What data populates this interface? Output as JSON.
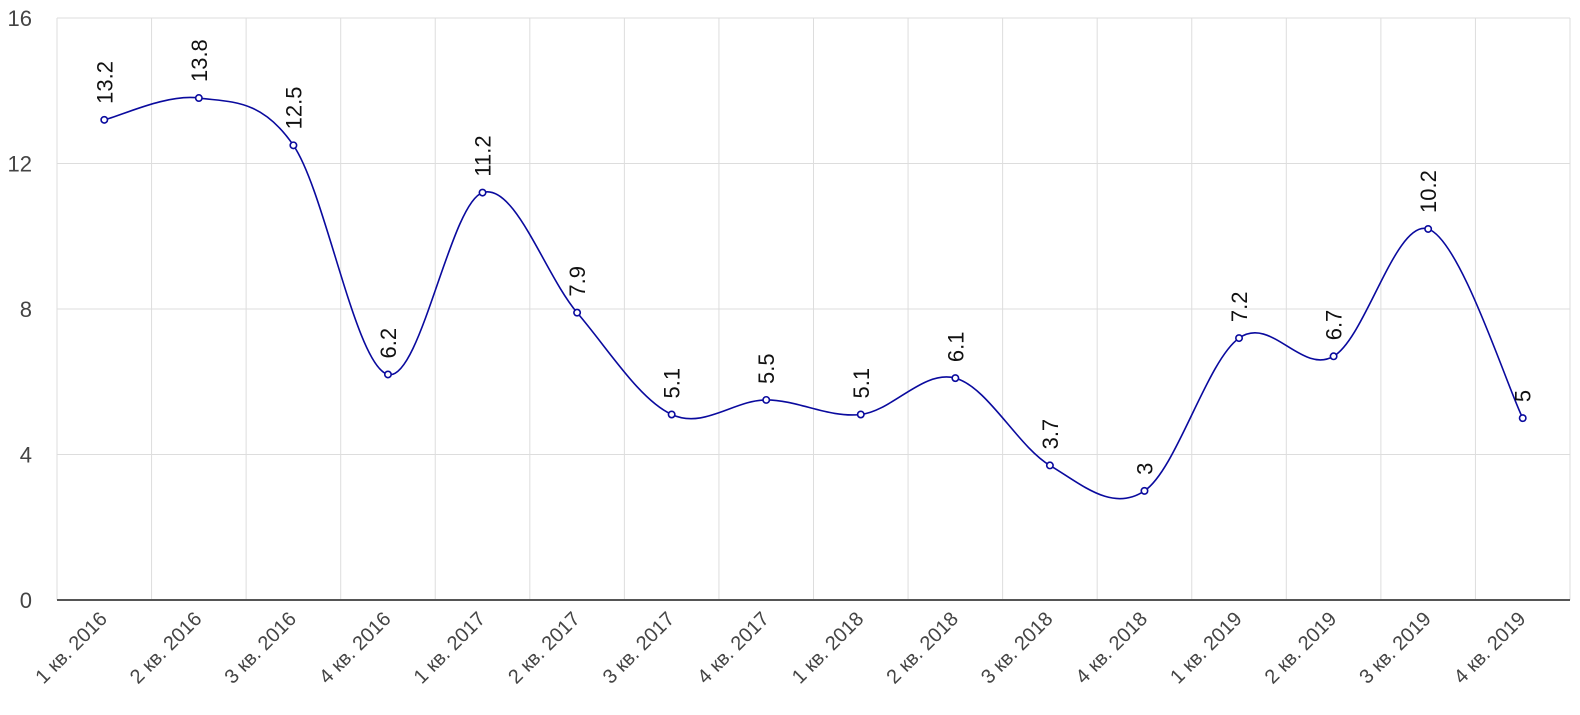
{
  "chart_data": {
    "type": "line",
    "title": "",
    "xlabel": "",
    "ylabel": "",
    "categories": [
      "1 кв. 2016",
      "2 кв. 2016",
      "3 кв. 2016",
      "4 кв. 2016",
      "1 кв. 2017",
      "2 кв. 2017",
      "3 кв. 2017",
      "4 кв. 2017",
      "1 кв. 2018",
      "2 кв. 2018",
      "3 кв. 2018",
      "4 кв. 2018",
      "1 кв. 2019",
      "2 кв. 2019",
      "3 кв. 2019",
      "4 кв. 2019"
    ],
    "series": [
      {
        "values": [
          13.2,
          13.8,
          12.5,
          6.2,
          11.2,
          7.9,
          5.1,
          5.5,
          5.1,
          6.1,
          3.7,
          3,
          7.2,
          6.7,
          10.2,
          5
        ],
        "labels": [
          "13.2",
          "13.8",
          "12.5",
          "6.2",
          "11.2",
          "7.9",
          "5.1",
          "5.5",
          "5.1",
          "6.1",
          "3.7",
          "3",
          "7.2",
          "6.7",
          "10.2",
          "5"
        ],
        "color": "#0a0a9e"
      }
    ],
    "ylim": [
      0,
      16
    ],
    "yticks": [
      0,
      4,
      8,
      12,
      16
    ],
    "grid": true,
    "legend": "none",
    "smooth": true,
    "gridColor": "#dddddd",
    "axisColor": "#555555"
  }
}
